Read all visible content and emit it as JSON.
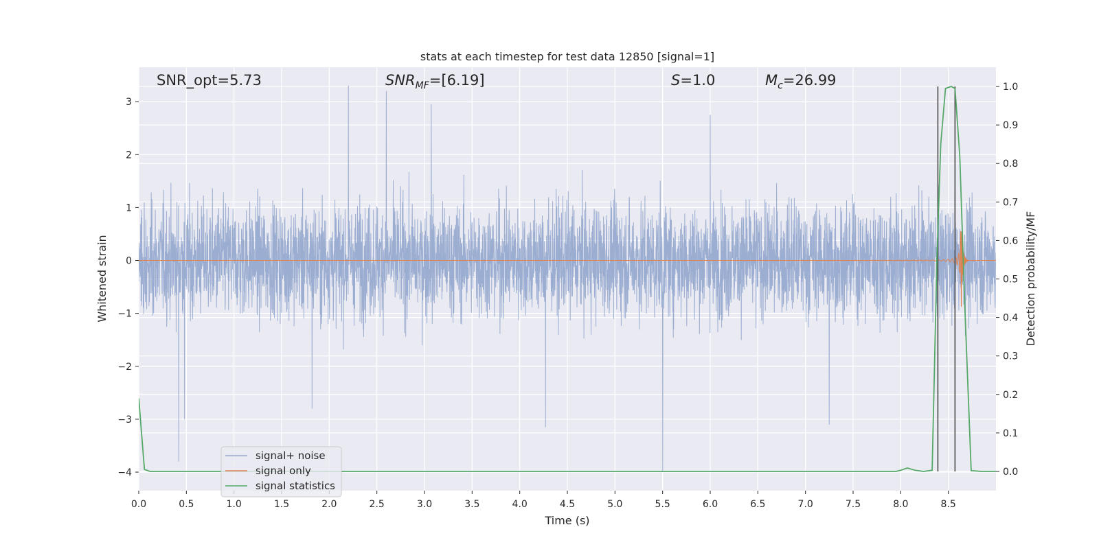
{
  "chart_data": {
    "type": "line",
    "title": "stats at each timestep for test data 12850 [signal=1]",
    "xlabel": "Time (s)",
    "ylabel_left": "Whitened strain",
    "ylabel_right": "Detection probability/MF",
    "xlim": [
      0.0,
      9.0
    ],
    "ylim_left": [
      -4.35,
      3.65
    ],
    "ylim_right": [
      -0.05,
      1.05
    ],
    "xticks": [
      "0.0",
      "0.5",
      "1.0",
      "1.5",
      "2.0",
      "2.5",
      "3.0",
      "3.5",
      "4.0",
      "4.5",
      "5.0",
      "5.5",
      "6.0",
      "6.5",
      "7.0",
      "7.5",
      "8.0",
      "8.5"
    ],
    "yticks_left": [
      "−4",
      "−3",
      "−2",
      "−1",
      "0",
      "1",
      "2",
      "3"
    ],
    "yticks_right": [
      "0.0",
      "0.1",
      "0.2",
      "0.3",
      "0.4",
      "0.5",
      "0.6",
      "0.7",
      "0.8",
      "0.9",
      "1.0"
    ],
    "grid": true,
    "legend_placement": "lower-left",
    "annotations": {
      "snr_opt": "SNR_opt=5.73",
      "snr_mf_base": "SNR",
      "snr_mf_sub": "MF",
      "snr_mf_rest": "=[6.19]",
      "s_sym": "S",
      "s_rest": "=1.0",
      "mc_base": "M",
      "mc_sub": "c",
      "mc_rest": "=26.99"
    },
    "vlines": [
      8.39,
      8.57
    ],
    "series": [
      {
        "name": "signal+ noise",
        "color": "#97aacf",
        "axis": "left",
        "kind": "noise",
        "spread": 0.75,
        "spikes": [
          {
            "x": 0.42,
            "y": -3.8
          },
          {
            "x": 0.48,
            "y": -3.0
          },
          {
            "x": 2.2,
            "y": 3.3
          },
          {
            "x": 2.6,
            "y": 3.2
          },
          {
            "x": 5.5,
            "y": -4.0
          },
          {
            "x": 4.27,
            "y": -3.15
          },
          {
            "x": 6.0,
            "y": 2.75
          },
          {
            "x": 8.57,
            "y": -2.95
          },
          {
            "x": 3.07,
            "y": 2.95
          },
          {
            "x": 1.82,
            "y": -2.8
          },
          {
            "x": 7.25,
            "y": -3.1
          }
        ]
      },
      {
        "name": "signal only",
        "color": "#dd8452",
        "axis": "left",
        "kind": "chirp"
      },
      {
        "name": "signal statistics",
        "color": "#55a868",
        "axis": "right",
        "x": [
          0.0,
          0.06,
          0.12,
          0.5,
          1.0,
          2.0,
          3.0,
          4.0,
          5.0,
          6.0,
          7.0,
          7.5,
          7.95,
          8.0,
          8.07,
          8.15,
          8.24,
          8.33,
          8.38,
          8.42,
          8.47,
          8.53,
          8.57,
          8.62,
          8.67,
          8.74,
          8.85,
          9.0
        ],
        "y": [
          0.19,
          0.005,
          0.0,
          0.0,
          0.0,
          0.0,
          0.0,
          0.0,
          0.0,
          0.0,
          0.0,
          0.0,
          0.0,
          0.003,
          0.009,
          0.003,
          0.0,
          0.003,
          0.55,
          0.85,
          0.995,
          1.0,
          0.995,
          0.82,
          0.45,
          0.002,
          0.0,
          0.0
        ]
      }
    ]
  }
}
